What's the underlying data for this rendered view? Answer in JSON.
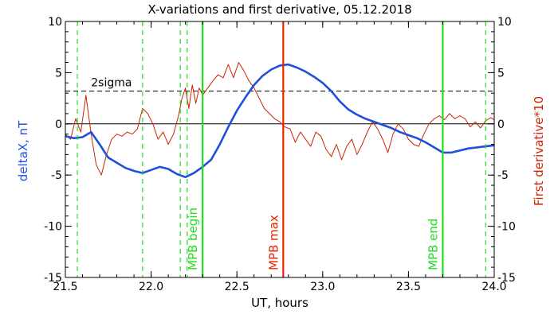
{
  "chart_data": {
    "type": "line",
    "title": "X-variations and first derivative, 05.12.2018",
    "xlabel": "UT, hours",
    "ylabel_left": "deltaX, nT",
    "ylabel_right": "First derivative*10",
    "xlim": [
      21.5,
      24.0
    ],
    "ylim": [
      -15,
      10
    ],
    "xticks": [
      "21.5",
      "22.0",
      "22.5",
      "23.0",
      "23.5",
      "24.0"
    ],
    "yticks_left": [
      "-15",
      "-10",
      "-5",
      "0",
      "5",
      "10"
    ],
    "yticks_right": [
      "-15",
      "-10",
      "-5",
      "0",
      "5",
      "10"
    ],
    "series": [
      {
        "name": "deltaX, nT",
        "color": "#1f4fdb",
        "x": [
          21.5,
          21.55,
          21.6,
          21.65,
          21.7,
          21.75,
          21.8,
          21.85,
          21.9,
          21.95,
          22.0,
          22.05,
          22.1,
          22.15,
          22.2,
          22.25,
          22.3,
          22.35,
          22.4,
          22.45,
          22.5,
          22.55,
          22.6,
          22.65,
          22.7,
          22.75,
          22.8,
          22.85,
          22.9,
          22.95,
          23.0,
          23.05,
          23.1,
          23.15,
          23.2,
          23.25,
          23.3,
          23.35,
          23.4,
          23.45,
          23.5,
          23.55,
          23.6,
          23.65,
          23.7,
          23.75,
          23.8,
          23.85,
          23.9,
          23.95,
          24.0
        ],
        "y": [
          -1.2,
          -1.4,
          -1.3,
          -0.8,
          -2.0,
          -3.3,
          -3.8,
          -4.3,
          -4.6,
          -4.8,
          -4.5,
          -4.2,
          -4.4,
          -4.9,
          -5.2,
          -4.8,
          -4.2,
          -3.5,
          -2.0,
          -0.3,
          1.3,
          2.6,
          3.8,
          4.7,
          5.3,
          5.7,
          5.8,
          5.5,
          5.1,
          4.6,
          4.0,
          3.2,
          2.2,
          1.4,
          0.9,
          0.5,
          0.2,
          -0.1,
          -0.4,
          -0.8,
          -1.1,
          -1.4,
          -1.8,
          -2.3,
          -2.8,
          -2.8,
          -2.6,
          -2.4,
          -2.3,
          -2.2,
          -2.1
        ]
      },
      {
        "name": "First derivative*10",
        "color": "#cc2200",
        "x": [
          21.5,
          21.53,
          21.56,
          21.59,
          21.62,
          21.65,
          21.68,
          21.71,
          21.74,
          21.77,
          21.8,
          21.83,
          21.86,
          21.89,
          21.92,
          21.95,
          21.98,
          22.01,
          22.04,
          22.07,
          22.1,
          22.13,
          22.16,
          22.18,
          22.2,
          22.22,
          22.24,
          22.26,
          22.28,
          22.3,
          22.33,
          22.36,
          22.39,
          22.42,
          22.45,
          22.48,
          22.51,
          22.54,
          22.57,
          22.6,
          22.63,
          22.66,
          22.69,
          22.72,
          22.75,
          22.78,
          22.81,
          22.84,
          22.87,
          22.9,
          22.93,
          22.96,
          22.99,
          23.02,
          23.05,
          23.08,
          23.11,
          23.14,
          23.17,
          23.2,
          23.23,
          23.26,
          23.29,
          23.32,
          23.35,
          23.38,
          23.41,
          23.44,
          23.47,
          23.5,
          23.53,
          23.56,
          23.59,
          23.62,
          23.65,
          23.68,
          23.71,
          23.74,
          23.77,
          23.8,
          23.83,
          23.86,
          23.89,
          23.92,
          23.95,
          23.98,
          24.0
        ],
        "y": [
          -1.0,
          -1.5,
          0.5,
          -0.8,
          2.8,
          -1.0,
          -4.0,
          -5.0,
          -3.0,
          -1.5,
          -1.0,
          -1.2,
          -0.8,
          -1.0,
          -0.5,
          1.5,
          1.0,
          0.0,
          -1.5,
          -0.8,
          -2.0,
          -1.0,
          0.8,
          2.5,
          3.5,
          1.5,
          3.8,
          2.0,
          3.5,
          2.8,
          3.5,
          4.2,
          4.8,
          4.5,
          5.8,
          4.5,
          6.0,
          5.2,
          4.2,
          3.5,
          2.5,
          1.5,
          1.0,
          0.5,
          0.2,
          -0.3,
          -0.5,
          -1.8,
          -0.8,
          -1.5,
          -2.2,
          -0.8,
          -1.2,
          -2.5,
          -3.2,
          -2.0,
          -3.5,
          -2.2,
          -1.5,
          -3.0,
          -2.0,
          -0.8,
          0.2,
          -0.5,
          -1.5,
          -2.8,
          -1.0,
          0.0,
          -0.5,
          -1.5,
          -2.0,
          -2.2,
          -1.0,
          0.0,
          0.5,
          0.8,
          0.4,
          1.0,
          0.5,
          0.8,
          0.5,
          -0.3,
          0.2,
          -0.4,
          0.3,
          0.6,
          0.4
        ]
      }
    ],
    "hlines": [
      {
        "y": 0,
        "style": "solid",
        "color": "#000000"
      },
      {
        "y": 3.2,
        "style": "dashed",
        "color": "#000000",
        "label": "2sigma",
        "label_x": 21.65
      }
    ],
    "vlines": [
      {
        "x": 21.57,
        "style": "dashed",
        "color": "#22dd22"
      },
      {
        "x": 21.95,
        "style": "dashed",
        "color": "#22dd22"
      },
      {
        "x": 22.17,
        "style": "dashed",
        "color": "#22dd22"
      },
      {
        "x": 22.21,
        "style": "dashed",
        "color": "#22dd22"
      },
      {
        "x": 22.3,
        "style": "solid",
        "color": "#22dd22",
        "label": "MPB begin"
      },
      {
        "x": 22.77,
        "style": "solid",
        "color": "#ee2200",
        "label": "MPB max"
      },
      {
        "x": 23.7,
        "style": "solid",
        "color": "#22dd22",
        "label": "MPB end"
      },
      {
        "x": 23.95,
        "style": "dashed",
        "color": "#22dd22"
      }
    ]
  }
}
